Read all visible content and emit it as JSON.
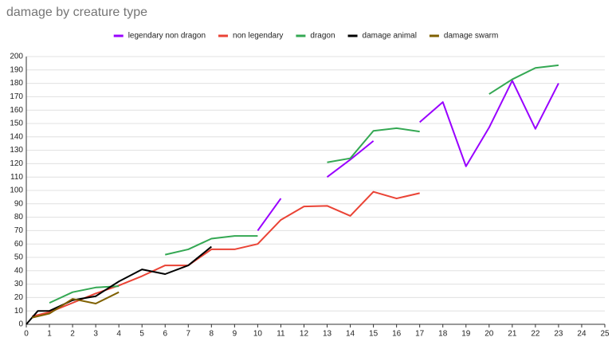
{
  "chart_data": {
    "type": "line",
    "title": "damage by creature type",
    "xlim": [
      0,
      25
    ],
    "xticks": [
      0,
      1,
      2,
      3,
      4,
      5,
      6,
      7,
      8,
      9,
      10,
      11,
      12,
      13,
      14,
      15,
      16,
      17,
      18,
      19,
      20,
      21,
      22,
      23,
      24,
      25
    ],
    "ylim": [
      0,
      200
    ],
    "yticks": [
      0,
      10,
      20,
      30,
      40,
      50,
      60,
      70,
      80,
      90,
      100,
      110,
      120,
      130,
      140,
      150,
      160,
      170,
      180,
      190,
      200
    ],
    "grid": true,
    "legend": "top",
    "series": [
      {
        "name": "legendary non dragon",
        "color": "#9900ff",
        "x": [
          10,
          11,
          12,
          13,
          14,
          15,
          16,
          17,
          18,
          19,
          20,
          21,
          22,
          23
        ],
        "values": [
          70,
          94,
          null,
          110,
          123,
          137,
          null,
          151,
          166,
          118,
          147,
          182,
          146,
          180
        ]
      },
      {
        "name": "non legendary",
        "color": "#ea4335",
        "x": [
          0.25,
          1,
          2,
          3,
          4,
          5,
          6,
          7,
          8,
          9,
          10,
          11,
          12,
          13,
          14,
          15,
          16,
          17
        ],
        "values": [
          6,
          9,
          16,
          23,
          29,
          36,
          44,
          44,
          56,
          56,
          60,
          78,
          88,
          88.5,
          81,
          99,
          94,
          98
        ]
      },
      {
        "name": "dragon",
        "color": "#34a853",
        "x": [
          1,
          2,
          3,
          4,
          5,
          6,
          7,
          8,
          9,
          10,
          12,
          13,
          14,
          15,
          16,
          17,
          19,
          20,
          21,
          22,
          23
        ],
        "values": [
          16,
          24,
          27.5,
          28.5,
          null,
          52,
          56,
          64,
          66,
          66,
          null,
          121,
          124,
          144.5,
          146.5,
          144,
          null,
          172,
          183,
          191.5,
          193.5
        ]
      },
      {
        "name": "damage animal",
        "color": "#000000",
        "x": [
          0,
          0.5,
          1,
          2,
          3,
          4,
          5,
          6,
          7,
          8
        ],
        "values": [
          0,
          10,
          10,
          18,
          21,
          32,
          41,
          37.5,
          44,
          58
        ]
      },
      {
        "name": "damage swarm",
        "color": "#7f6000",
        "x": [
          0.25,
          1,
          2,
          3,
          4
        ],
        "values": [
          5,
          8,
          19,
          15.5,
          24
        ]
      }
    ]
  }
}
